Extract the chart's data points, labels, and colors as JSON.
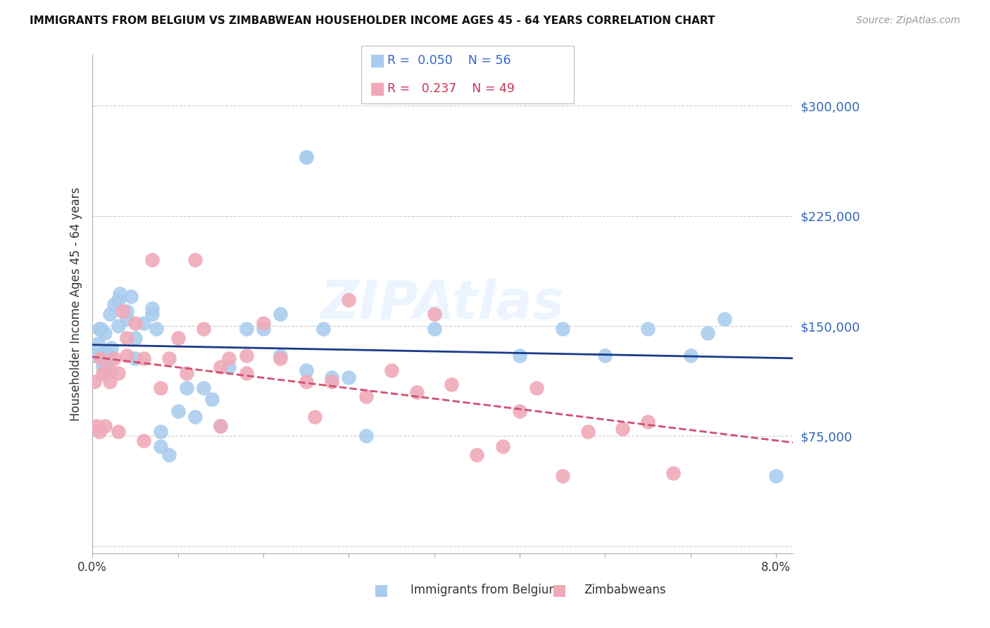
{
  "title": "IMMIGRANTS FROM BELGIUM VS ZIMBABWEAN HOUSEHOLDER INCOME AGES 45 - 64 YEARS CORRELATION CHART",
  "source": "Source: ZipAtlas.com",
  "ylabel": "Householder Income Ages 45 - 64 years",
  "xlim": [
    0.0,
    0.082
  ],
  "ylim": [
    -5000,
    335000
  ],
  "yticks": [
    0,
    75000,
    150000,
    225000,
    300000
  ],
  "ytick_labels": [
    "",
    "$75,000",
    "$150,000",
    "$225,000",
    "$300,000"
  ],
  "xticks": [
    0.0,
    0.01,
    0.02,
    0.03,
    0.04,
    0.05,
    0.06,
    0.07,
    0.08
  ],
  "xtick_labels": [
    "0.0%",
    "",
    "",
    "",
    "",
    "",
    "",
    "",
    "8.0%"
  ],
  "legend_belgium_R": "0.050",
  "legend_belgium_N": "56",
  "legend_zimbabwe_R": "0.237",
  "legend_zimbabwe_N": "49",
  "belgium_color": "#A8CCEE",
  "zimbabwe_color": "#F0A8B8",
  "belgium_line_color": "#1A3A8A",
  "zimbabwe_line_color": "#D05070",
  "watermark": "ZIPAtlas",
  "legend_entries": [
    "Immigrants from Belgium",
    "Zimbabweans"
  ],
  "belgium_x": [
    0.0003,
    0.0006,
    0.0008,
    0.001,
    0.001,
    0.0012,
    0.0013,
    0.0015,
    0.0015,
    0.0018,
    0.002,
    0.002,
    0.0022,
    0.0025,
    0.003,
    0.003,
    0.0032,
    0.004,
    0.004,
    0.0045,
    0.005,
    0.005,
    0.006,
    0.007,
    0.007,
    0.0075,
    0.008,
    0.008,
    0.009,
    0.01,
    0.011,
    0.012,
    0.013,
    0.014,
    0.015,
    0.016,
    0.018,
    0.02,
    0.022,
    0.022,
    0.025,
    0.025,
    0.025,
    0.027,
    0.028,
    0.03,
    0.032,
    0.04,
    0.05,
    0.055,
    0.06,
    0.065,
    0.07,
    0.072,
    0.074,
    0.08
  ],
  "belgium_y": [
    130000,
    138000,
    148000,
    128000,
    148000,
    122000,
    132000,
    118000,
    145000,
    130000,
    128000,
    158000,
    135000,
    165000,
    150000,
    168000,
    172000,
    160000,
    155000,
    170000,
    142000,
    128000,
    152000,
    158000,
    162000,
    148000,
    78000,
    68000,
    62000,
    92000,
    108000,
    88000,
    108000,
    100000,
    82000,
    122000,
    148000,
    148000,
    158000,
    130000,
    265000,
    265000,
    120000,
    148000,
    115000,
    115000,
    75000,
    148000,
    130000,
    148000,
    130000,
    148000,
    130000,
    145000,
    155000,
    48000
  ],
  "zimbabwe_x": [
    0.0002,
    0.0005,
    0.0008,
    0.001,
    0.0012,
    0.0015,
    0.002,
    0.002,
    0.0025,
    0.003,
    0.003,
    0.0035,
    0.004,
    0.004,
    0.005,
    0.006,
    0.006,
    0.007,
    0.008,
    0.009,
    0.01,
    0.011,
    0.012,
    0.013,
    0.015,
    0.015,
    0.016,
    0.018,
    0.018,
    0.02,
    0.022,
    0.025,
    0.026,
    0.028,
    0.03,
    0.032,
    0.035,
    0.038,
    0.04,
    0.042,
    0.045,
    0.048,
    0.05,
    0.052,
    0.055,
    0.058,
    0.062,
    0.065,
    0.068
  ],
  "zimbabwe_y": [
    112000,
    82000,
    78000,
    128000,
    118000,
    82000,
    120000,
    112000,
    128000,
    118000,
    78000,
    160000,
    130000,
    142000,
    152000,
    72000,
    128000,
    195000,
    108000,
    128000,
    142000,
    118000,
    195000,
    148000,
    122000,
    82000,
    128000,
    130000,
    118000,
    152000,
    128000,
    112000,
    88000,
    112000,
    168000,
    102000,
    120000,
    105000,
    158000,
    110000,
    62000,
    68000,
    92000,
    108000,
    48000,
    78000,
    80000,
    85000,
    50000
  ]
}
